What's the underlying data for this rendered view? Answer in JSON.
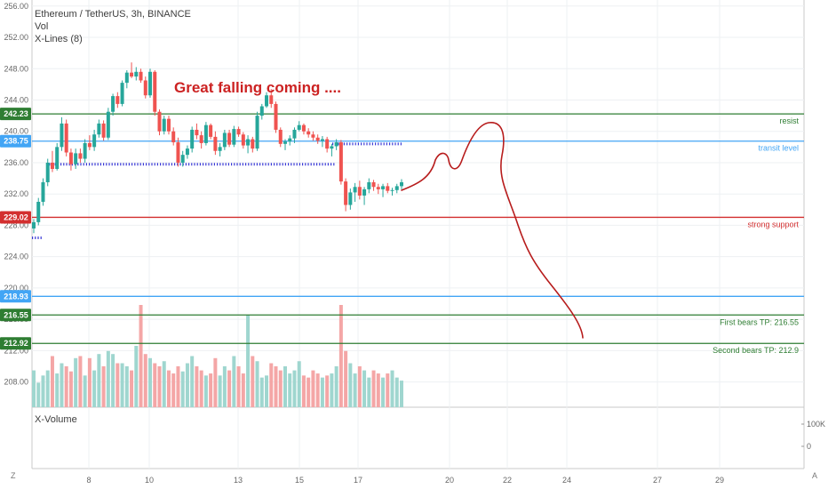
{
  "header": {
    "symbol": "Ethereum / TetherUS, 3h, BINANCE",
    "indicator_vol": "Vol",
    "indicator_xlines": "X-Lines (8)"
  },
  "annotation": {
    "text": "Great falling coming ....",
    "color": "#cc2222"
  },
  "sub_pane": {
    "label": "X-Volume",
    "ticks": [
      "100K",
      "0"
    ]
  },
  "footer": {
    "left_corner": "Z",
    "right_corner": "A"
  },
  "colors": {
    "up": "#26a69a",
    "down": "#ef5350",
    "vol_up": "#9fd6cf",
    "vol_down": "#f4a6a6",
    "green_line": "#2e7d32",
    "red_line": "#d32f2f",
    "blue_line": "#42a5f5",
    "xline": "#3a3ad6",
    "drawing": "#b71c1c"
  },
  "chart_data": {
    "type": "candlestick",
    "title": "Ethereum / TetherUS, 3h, BINANCE",
    "y_ticks": [
      "256.00",
      "252.00",
      "248.00",
      "244.00",
      "240.00",
      "236.00",
      "232.00",
      "228.00",
      "224.00",
      "220.00",
      "216.00",
      "212.00",
      "208.00"
    ],
    "x_ticks": [
      "8",
      "10",
      "13",
      "15",
      "17",
      "20",
      "22",
      "24",
      "27",
      "29"
    ],
    "ylim": [
      205,
      257
    ],
    "horizontal_lines": [
      {
        "price": 242.23,
        "label": "242.23",
        "note": "resist",
        "color_key": "green_line"
      },
      {
        "price": 238.75,
        "label": "238.75",
        "note": "transit level",
        "color_key": "blue_line"
      },
      {
        "price": 229.02,
        "label": "229.02",
        "note": "strong support",
        "color_key": "red_line"
      },
      {
        "price": 218.93,
        "label": "218.93",
        "note": "",
        "color_key": "blue_line"
      },
      {
        "price": 216.55,
        "label": "216.55",
        "note": "First bears TP: 216.55",
        "color_key": "green_line"
      },
      {
        "price": 212.92,
        "label": "212.92",
        "note": "Second bears TP: 212.9",
        "color_key": "green_line"
      }
    ],
    "candles_ohlc": [
      [
        227.6,
        228.8,
        227.0,
        228.4
      ],
      [
        228.4,
        231.5,
        228.0,
        231.0
      ],
      [
        231.0,
        234.0,
        230.5,
        233.5
      ],
      [
        233.5,
        236.5,
        233.0,
        236.0
      ],
      [
        236.0,
        237.5,
        234.8,
        235.2
      ],
      [
        235.2,
        238.5,
        235.0,
        238.0
      ],
      [
        238.0,
        241.8,
        237.5,
        241.0
      ],
      [
        241.0,
        241.5,
        236.8,
        237.3
      ],
      [
        237.3,
        237.8,
        235.0,
        235.8
      ],
      [
        235.8,
        237.8,
        235.2,
        237.2
      ],
      [
        237.2,
        237.8,
        236.0,
        236.5
      ],
      [
        236.5,
        239.0,
        236.0,
        238.5
      ],
      [
        238.5,
        239.5,
        237.6,
        238.0
      ],
      [
        238.0,
        240.2,
        237.5,
        239.6
      ],
      [
        239.6,
        241.5,
        239.2,
        241.0
      ],
      [
        241.0,
        241.4,
        238.8,
        239.2
      ],
      [
        239.2,
        243.0,
        238.9,
        242.5
      ],
      [
        242.5,
        244.8,
        242.0,
        244.5
      ],
      [
        244.5,
        245.0,
        243.0,
        243.5
      ],
      [
        243.5,
        246.5,
        243.2,
        246.2
      ],
      [
        246.2,
        247.8,
        245.5,
        247.5
      ],
      [
        247.5,
        248.8,
        246.8,
        247.0
      ],
      [
        247.0,
        248.2,
        246.5,
        247.6
      ],
      [
        247.6,
        248.0,
        246.2,
        246.5
      ],
      [
        246.5,
        247.0,
        244.2,
        244.6
      ],
      [
        244.6,
        248.0,
        244.3,
        247.6
      ],
      [
        247.6,
        247.8,
        242.0,
        242.5
      ],
      [
        242.5,
        242.8,
        239.5,
        240.0
      ],
      [
        240.0,
        242.0,
        239.6,
        241.6
      ],
      [
        241.6,
        242.0,
        239.6,
        240.0
      ],
      [
        240.0,
        240.5,
        238.2,
        238.6
      ],
      [
        238.6,
        239.2,
        235.5,
        236.0
      ],
      [
        236.0,
        237.5,
        235.5,
        237.0
      ],
      [
        237.0,
        238.2,
        236.5,
        237.8
      ],
      [
        237.8,
        240.6,
        237.3,
        240.2
      ],
      [
        240.2,
        241.0,
        239.0,
        239.5
      ],
      [
        239.5,
        240.0,
        237.8,
        238.5
      ],
      [
        238.5,
        241.2,
        238.2,
        240.8
      ],
      [
        240.8,
        241.0,
        239.0,
        239.3
      ],
      [
        239.3,
        240.0,
        237.0,
        237.5
      ],
      [
        237.5,
        238.5,
        236.8,
        238.0
      ],
      [
        238.0,
        240.2,
        237.6,
        239.8
      ],
      [
        239.8,
        240.2,
        238.0,
        238.3
      ],
      [
        238.3,
        240.7,
        238.0,
        240.3
      ],
      [
        240.3,
        240.6,
        239.3,
        239.6
      ],
      [
        239.6,
        239.9,
        237.8,
        238.2
      ],
      [
        238.2,
        239.5,
        237.2,
        239.0
      ],
      [
        239.0,
        239.3,
        237.3,
        237.8
      ],
      [
        237.8,
        242.5,
        237.5,
        242.0
      ],
      [
        242.0,
        243.5,
        241.5,
        243.2
      ],
      [
        243.2,
        245.0,
        243.0,
        244.6
      ],
      [
        244.6,
        245.4,
        243.0,
        243.5
      ],
      [
        243.5,
        243.8,
        239.8,
        240.2
      ],
      [
        240.2,
        240.5,
        238.0,
        238.4
      ],
      [
        238.4,
        239.0,
        237.6,
        238.7
      ],
      [
        238.7,
        239.5,
        238.2,
        239.1
      ],
      [
        239.1,
        240.5,
        238.5,
        240.2
      ],
      [
        240.2,
        241.3,
        240.0,
        240.8
      ],
      [
        240.8,
        241.0,
        239.6,
        240.0
      ],
      [
        240.0,
        240.4,
        239.2,
        239.6
      ],
      [
        239.6,
        240.0,
        238.8,
        239.2
      ],
      [
        239.2,
        239.6,
        238.4,
        238.8
      ],
      [
        238.8,
        239.4,
        238.0,
        239.0
      ],
      [
        239.0,
        239.3,
        237.3,
        237.8
      ],
      [
        237.8,
        238.4,
        236.8,
        238.1
      ],
      [
        238.1,
        239.0,
        237.6,
        238.6
      ],
      [
        238.6,
        238.9,
        233.2,
        233.6
      ],
      [
        233.6,
        234.0,
        229.8,
        230.6
      ],
      [
        230.6,
        232.7,
        230.0,
        232.2
      ],
      [
        232.2,
        233.4,
        231.0,
        232.9
      ],
      [
        232.9,
        233.7,
        231.3,
        231.8
      ],
      [
        231.8,
        232.9,
        230.6,
        232.6
      ],
      [
        232.6,
        234.0,
        232.1,
        233.5
      ],
      [
        233.5,
        233.8,
        232.4,
        232.9
      ],
      [
        232.9,
        233.3,
        232.0,
        232.6
      ],
      [
        232.6,
        233.3,
        231.6,
        233.0
      ],
      [
        233.0,
        233.4,
        232.1,
        232.4
      ],
      [
        232.4,
        232.8,
        231.8,
        232.5
      ],
      [
        232.5,
        233.3,
        232.1,
        233.0
      ],
      [
        233.0,
        233.9,
        232.6,
        233.5
      ]
    ],
    "volume_pct": [
      36,
      24,
      31,
      36,
      50,
      33,
      43,
      40,
      35,
      48,
      50,
      31,
      48,
      36,
      52,
      40,
      55,
      52,
      43,
      43,
      40,
      36,
      57,
      50,
      52,
      48,
      43,
      40,
      45,
      36,
      33,
      40,
      35,
      43,
      50,
      40,
      36,
      31,
      33,
      48,
      31,
      40,
      36,
      50,
      40,
      33,
      36,
      50,
      45,
      29,
      31,
      43,
      40,
      36,
      40,
      33,
      36,
      45,
      31,
      29,
      36,
      33,
      29,
      31,
      33,
      40,
      36,
      55,
      43,
      33,
      40,
      36,
      29,
      36,
      33,
      29,
      33,
      36,
      29,
      26
    ],
    "volume_highlights": {
      "23": 100,
      "46": 90,
      "66": 100,
      "22": 60
    }
  }
}
